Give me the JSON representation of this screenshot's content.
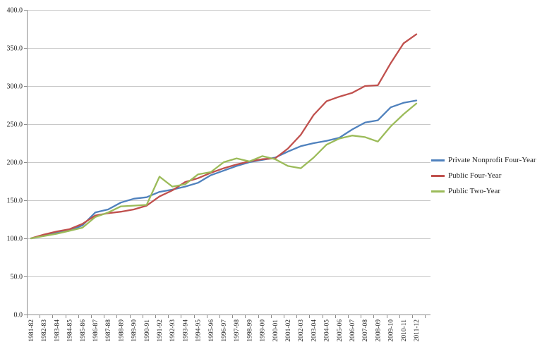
{
  "chart_data": {
    "type": "line",
    "title": "",
    "xlabel": "",
    "ylabel": "",
    "categories": [
      "1981-82",
      "1982-83",
      "1983-84",
      "1984-85",
      "1985-86",
      "1986-87",
      "1987-88",
      "1988-89",
      "1989-90",
      "1990-91",
      "1991-92",
      "1992-93",
      "1993-94",
      "1994-95",
      "1995-96",
      "1996-97",
      "1997-98",
      "1998-99",
      "1999-00",
      "2000-01",
      "2001-02",
      "2002-03",
      "2003-04",
      "2004-05",
      "2005-06",
      "2006-07",
      "2007-08",
      "2008-09",
      "2009-10",
      "2010-11",
      "2011-12"
    ],
    "series": [
      {
        "name": "Private Nonprofit Four-Year",
        "color": "#4F81BD",
        "values": [
          100,
          104,
          107,
          110,
          117,
          134,
          138,
          147,
          152,
          154,
          161,
          164,
          168,
          173,
          183,
          189,
          195,
          200,
          203,
          206,
          214,
          221,
          225,
          228,
          232,
          243,
          252,
          255,
          272,
          278,
          281
        ]
      },
      {
        "name": "Public Four-Year",
        "color": "#C0504D",
        "values": [
          100,
          105,
          109,
          112,
          119,
          130,
          133,
          135,
          138,
          143,
          155,
          163,
          174,
          179,
          186,
          192,
          197,
          201,
          204,
          205,
          218,
          236,
          262,
          280,
          286,
          291,
          300,
          301,
          330,
          356,
          368
        ]
      },
      {
        "name": "Public Two-Year",
        "color": "#9BBB59",
        "values": [
          100,
          103,
          106,
          110,
          114,
          128,
          134,
          142,
          143,
          144,
          181,
          168,
          171,
          184,
          187,
          200,
          205,
          201,
          208,
          204,
          195,
          192,
          206,
          223,
          231,
          235,
          233,
          227,
          247,
          263,
          277
        ]
      }
    ],
    "y_axis": {
      "min": 0,
      "max": 400,
      "step": 50,
      "tick_labels": [
        "0.0",
        "50.0",
        "100.0",
        "150.0",
        "200.0",
        "250.0",
        "300.0",
        "350.0",
        "400.0"
      ]
    },
    "x_axis": {
      "label_rotation_deg": -90
    },
    "legend_position": "right",
    "grid": true
  },
  "colors": {
    "background": "#FFFFFF",
    "gridline": "#C8C8C8",
    "axis": "#8C8C8C",
    "tick_text": "#1f1f1f"
  }
}
